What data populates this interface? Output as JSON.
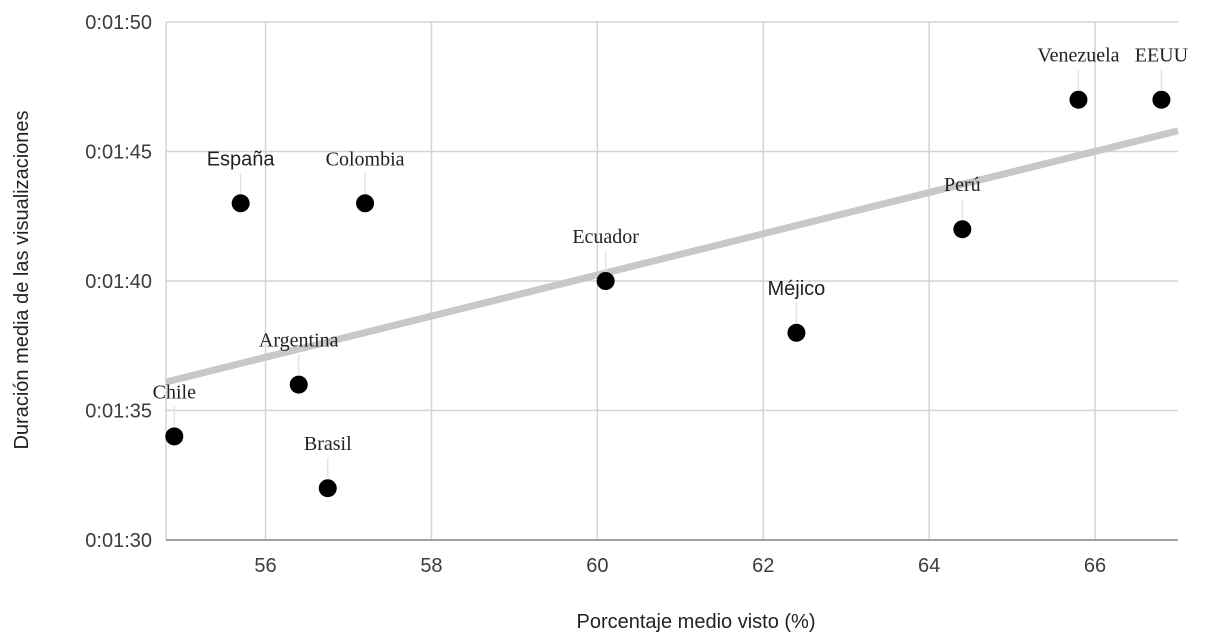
{
  "chart_data": {
    "type": "scatter",
    "title": "",
    "xlabel": "Porcentaje medio visto (%)",
    "ylabel": "Duración media de las visualizaciones",
    "xlim": [
      54.8,
      67
    ],
    "ylim": [
      90,
      110
    ],
    "x_ticks": [
      56,
      58,
      60,
      62,
      64,
      66
    ],
    "y_ticks": [
      {
        "value": 90,
        "label": "0:01:30"
      },
      {
        "value": 95,
        "label": "0:01:35"
      },
      {
        "value": 100,
        "label": "0:01:40"
      },
      {
        "value": 105,
        "label": "0:01:45"
      },
      {
        "value": 110,
        "label": "0:01:50"
      }
    ],
    "grid": true,
    "point_color": "#000000",
    "trendline_color": "#c8c8c8",
    "trendline": {
      "x": [
        54.8,
        67
      ],
      "y": [
        96.1,
        105.8
      ]
    },
    "points": [
      {
        "label": "Chile",
        "x": 54.9,
        "y": 94,
        "label_font": "serif"
      },
      {
        "label": "España",
        "x": 55.7,
        "y": 103,
        "label_font": "sans"
      },
      {
        "label": "Argentina",
        "x": 56.4,
        "y": 96,
        "label_font": "serif"
      },
      {
        "label": "Brasil",
        "x": 56.75,
        "y": 92,
        "label_font": "serif"
      },
      {
        "label": "Colombia",
        "x": 57.2,
        "y": 103,
        "label_font": "serif"
      },
      {
        "label": "Ecuador",
        "x": 60.1,
        "y": 100,
        "label_font": "serif"
      },
      {
        "label": "Méjico",
        "x": 62.4,
        "y": 98,
        "label_font": "sans"
      },
      {
        "label": "Perú",
        "x": 64.4,
        "y": 102,
        "label_font": "serif"
      },
      {
        "label": "Venezuela",
        "x": 65.8,
        "y": 107,
        "label_font": "serif"
      },
      {
        "label": "EEUU",
        "x": 66.8,
        "y": 107,
        "label_font": "serif"
      }
    ]
  }
}
